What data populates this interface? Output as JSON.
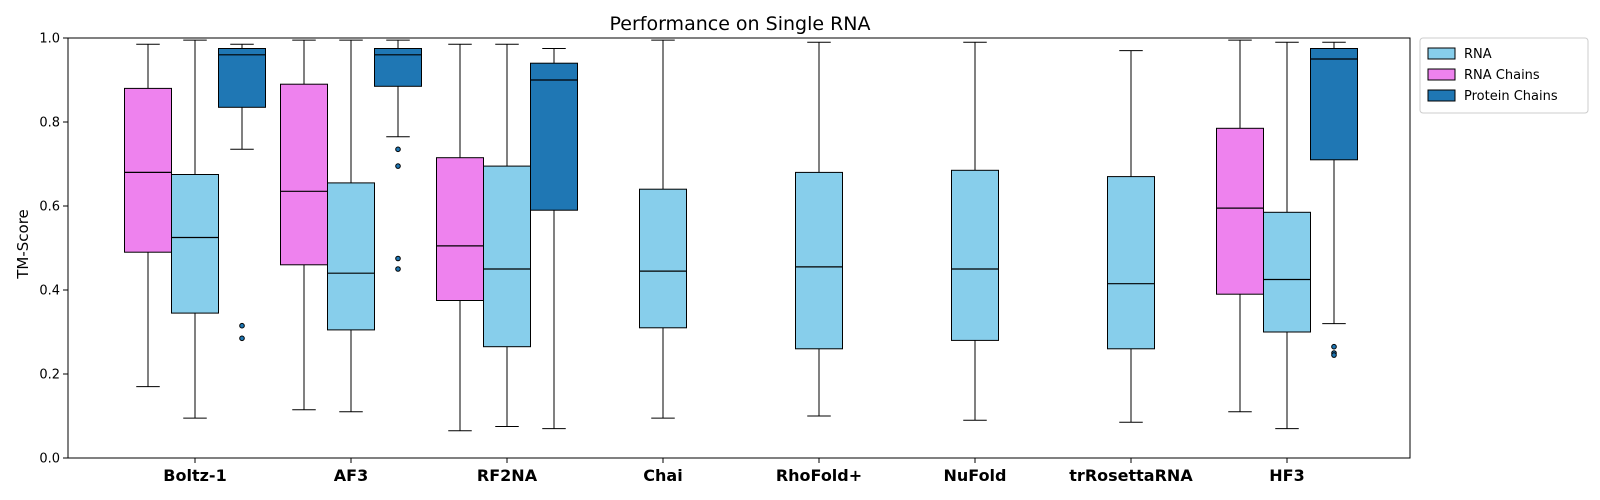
{
  "chart_data": {
    "type": "box",
    "title": "Performance on Single RNA",
    "xlabel": "",
    "ylabel": "TM-Score",
    "ylim": [
      0,
      1
    ],
    "yticks": [
      "0.0",
      "0.2",
      "0.4",
      "0.6",
      "0.8",
      "1.0"
    ],
    "grid": false,
    "legend_position": "outside-top-right",
    "categories": [
      "Boltz-1",
      "AF3",
      "RF2NA",
      "Chai",
      "RhoFold+",
      "NuFold",
      "trRosettaRNA",
      "HF3"
    ],
    "series": [
      {
        "name": "RNA Chains",
        "color": "#EE82EE",
        "boxes": [
          {
            "category": "Boltz-1",
            "whislo": 0.17,
            "q1": 0.49,
            "med": 0.68,
            "q3": 0.88,
            "whishi": 0.985,
            "fliers": []
          },
          {
            "category": "AF3",
            "whislo": 0.115,
            "q1": 0.46,
            "med": 0.635,
            "q3": 0.89,
            "whishi": 0.995,
            "fliers": []
          },
          {
            "category": "RF2NA",
            "whislo": 0.065,
            "q1": 0.375,
            "med": 0.505,
            "q3": 0.715,
            "whishi": 0.985,
            "fliers": []
          },
          {
            "category": "HF3",
            "whislo": 0.11,
            "q1": 0.39,
            "med": 0.595,
            "q3": 0.785,
            "whishi": 0.995,
            "fliers": []
          }
        ]
      },
      {
        "name": "RNA",
        "color": "#87CEEB",
        "boxes": [
          {
            "category": "Boltz-1",
            "whislo": 0.095,
            "q1": 0.345,
            "med": 0.525,
            "q3": 0.675,
            "whishi": 0.995,
            "fliers": []
          },
          {
            "category": "AF3",
            "whislo": 0.11,
            "q1": 0.305,
            "med": 0.44,
            "q3": 0.655,
            "whishi": 0.995,
            "fliers": []
          },
          {
            "category": "RF2NA",
            "whislo": 0.075,
            "q1": 0.265,
            "med": 0.45,
            "q3": 0.695,
            "whishi": 0.985,
            "fliers": []
          },
          {
            "category": "Chai",
            "whislo": 0.095,
            "q1": 0.31,
            "med": 0.445,
            "q3": 0.64,
            "whishi": 0.995,
            "fliers": []
          },
          {
            "category": "RhoFold+",
            "whislo": 0.1,
            "q1": 0.26,
            "med": 0.455,
            "q3": 0.68,
            "whishi": 0.99,
            "fliers": []
          },
          {
            "category": "NuFold",
            "whislo": 0.09,
            "q1": 0.28,
            "med": 0.45,
            "q3": 0.685,
            "whishi": 0.99,
            "fliers": []
          },
          {
            "category": "trRosettaRNA",
            "whislo": 0.085,
            "q1": 0.26,
            "med": 0.415,
            "q3": 0.67,
            "whishi": 0.97,
            "fliers": []
          },
          {
            "category": "HF3",
            "whislo": 0.07,
            "q1": 0.3,
            "med": 0.425,
            "q3": 0.585,
            "whishi": 0.99,
            "fliers": []
          }
        ]
      },
      {
        "name": "Protein Chains",
        "color": "#1F77B4",
        "boxes": [
          {
            "category": "Boltz-1",
            "whislo": 0.735,
            "q1": 0.835,
            "med": 0.96,
            "q3": 0.975,
            "whishi": 0.985,
            "fliers": [
              0.315,
              0.285
            ]
          },
          {
            "category": "AF3",
            "whislo": 0.765,
            "q1": 0.885,
            "med": 0.96,
            "q3": 0.975,
            "whishi": 0.995,
            "fliers": [
              0.735,
              0.695,
              0.475,
              0.45
            ]
          },
          {
            "category": "RF2NA",
            "whislo": 0.07,
            "q1": 0.59,
            "med": 0.9,
            "q3": 0.94,
            "whishi": 0.975,
            "fliers": []
          },
          {
            "category": "HF3",
            "whislo": 0.32,
            "q1": 0.71,
            "med": 0.95,
            "q3": 0.975,
            "whishi": 0.99,
            "fliers": [
              0.265,
              0.25,
              0.245
            ]
          }
        ]
      }
    ],
    "legend": [
      "RNA",
      "RNA Chains",
      "Protein Chains"
    ]
  }
}
